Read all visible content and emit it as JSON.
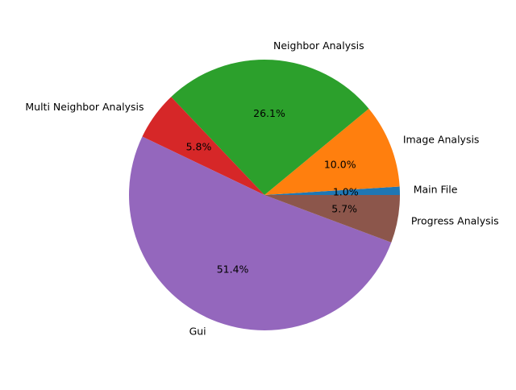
{
  "chart_data": {
    "type": "pie",
    "title": "",
    "slices": [
      {
        "label": "Main File",
        "value": 1.0,
        "pct_label": "1.0%",
        "color": "#1f77b4"
      },
      {
        "label": "Image Analysis",
        "value": 10.0,
        "pct_label": "10.0%",
        "color": "#ff7f0e"
      },
      {
        "label": "Neighbor Analysis",
        "value": 26.1,
        "pct_label": "26.1%",
        "color": "#2ca02c"
      },
      {
        "label": "Multi Neighbor Analysis",
        "value": 5.8,
        "pct_label": "5.8%",
        "color": "#d62728"
      },
      {
        "label": "Gui",
        "value": 51.4,
        "pct_label": "51.4%",
        "color": "#9467bd"
      },
      {
        "label": "Progress Analysis",
        "value": 5.7,
        "pct_label": "5.7%",
        "color": "#8c564b"
      }
    ],
    "start_angle_deg": 0,
    "direction": "counterclockwise",
    "legend": "none",
    "grid": false
  }
}
